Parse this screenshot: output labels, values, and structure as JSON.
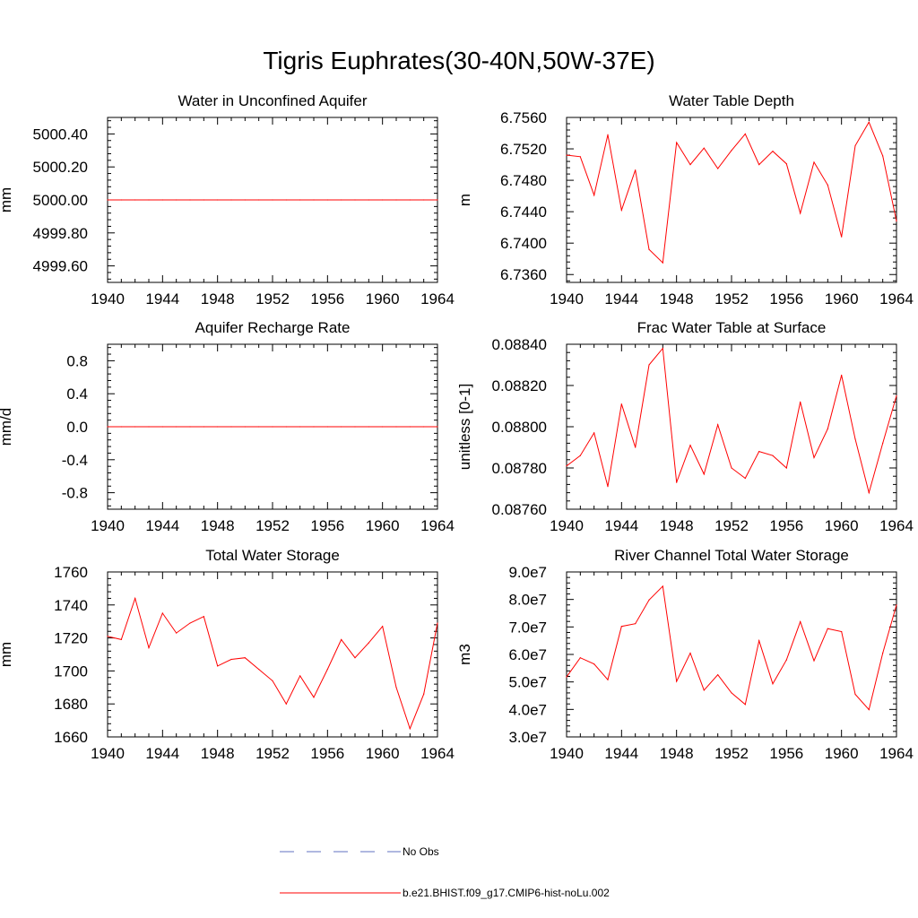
{
  "title": "Tigris Euphrates(30-40N,50W-37E)",
  "legend": [
    {
      "label": "No Obs",
      "color": "#6070c0",
      "style": "dashed"
    },
    {
      "label": "b.e21.BHIST.f09_g17.CMIP6-hist-noLu.002",
      "color": "#ff0000",
      "style": "solid"
    }
  ],
  "chart_data": [
    {
      "type": "line",
      "title": "Water in Unconfined Aquifer",
      "ylabel": "mm",
      "xlim": [
        1940,
        1964
      ],
      "ylim": [
        4999.5,
        5000.5
      ],
      "xticks": [
        "1940",
        "1944",
        "1948",
        "1952",
        "1956",
        "1960",
        "1964"
      ],
      "yticks": [
        {
          "v": 5000.4,
          "label": "5000.40"
        },
        {
          "v": 5000.2,
          "label": "5000.20"
        },
        {
          "v": 5000.0,
          "label": "5000.00"
        },
        {
          "v": 4999.8,
          "label": "4999.80"
        },
        {
          "v": 4999.6,
          "label": "4999.60"
        }
      ],
      "x": [
        1940,
        1941,
        1942,
        1943,
        1944,
        1945,
        1946,
        1947,
        1948,
        1949,
        1950,
        1951,
        1952,
        1953,
        1954,
        1955,
        1956,
        1957,
        1958,
        1959,
        1960,
        1961,
        1962,
        1963,
        1964
      ],
      "series": [
        {
          "name": "b.e21.BHIST.f09_g17.CMIP6-hist-noLu.002",
          "color": "#ff0000",
          "values": [
            5000,
            5000,
            5000,
            5000,
            5000,
            5000,
            5000,
            5000,
            5000,
            5000,
            5000,
            5000,
            5000,
            5000,
            5000,
            5000,
            5000,
            5000,
            5000,
            5000,
            5000,
            5000,
            5000,
            5000,
            5000
          ]
        }
      ]
    },
    {
      "type": "line",
      "title": "Water Table Depth",
      "ylabel": "m",
      "xlim": [
        1940,
        1964
      ],
      "ylim": [
        6.735,
        6.756
      ],
      "xticks": [
        "1940",
        "1944",
        "1948",
        "1952",
        "1956",
        "1960",
        "1964"
      ],
      "yticks": [
        {
          "v": 6.756,
          "label": "6.7560"
        },
        {
          "v": 6.752,
          "label": "6.7520"
        },
        {
          "v": 6.748,
          "label": "6.7480"
        },
        {
          "v": 6.744,
          "label": "6.7440"
        },
        {
          "v": 6.74,
          "label": "6.7400"
        },
        {
          "v": 6.736,
          "label": "6.7360"
        }
      ],
      "x": [
        1940,
        1941,
        1942,
        1943,
        1944,
        1945,
        1946,
        1947,
        1948,
        1949,
        1950,
        1951,
        1952,
        1953,
        1954,
        1955,
        1956,
        1957,
        1958,
        1959,
        1960,
        1961,
        1962,
        1963,
        1964
      ],
      "series": [
        {
          "name": "b.e21.BHIST.f09_g17.CMIP6-hist-noLu.002",
          "color": "#ff0000",
          "values": [
            6.7512,
            6.751,
            6.7461,
            6.7538,
            6.7442,
            6.7493,
            6.7392,
            6.7375,
            6.7528,
            6.75,
            6.7521,
            6.7495,
            6.7518,
            6.7539,
            6.75,
            6.7517,
            6.7501,
            6.7438,
            6.7503,
            6.7474,
            6.7408,
            6.7524,
            6.7554,
            6.7511,
            6.7428
          ]
        }
      ]
    },
    {
      "type": "line",
      "title": "Aquifer Recharge Rate",
      "ylabel": "mm/d",
      "xlim": [
        1940,
        1964
      ],
      "ylim": [
        -1.0,
        1.0
      ],
      "xticks": [
        "1940",
        "1944",
        "1948",
        "1952",
        "1956",
        "1960",
        "1964"
      ],
      "yticks": [
        {
          "v": 0.8,
          "label": "0.8"
        },
        {
          "v": 0.4,
          "label": "0.4"
        },
        {
          "v": 0.0,
          "label": "0.0"
        },
        {
          "v": -0.4,
          "label": "-0.4"
        },
        {
          "v": -0.8,
          "label": "-0.8"
        }
      ],
      "x": [
        1940,
        1941,
        1942,
        1943,
        1944,
        1945,
        1946,
        1947,
        1948,
        1949,
        1950,
        1951,
        1952,
        1953,
        1954,
        1955,
        1956,
        1957,
        1958,
        1959,
        1960,
        1961,
        1962,
        1963,
        1964
      ],
      "series": [
        {
          "name": "b.e21.BHIST.f09_g17.CMIP6-hist-noLu.002",
          "color": "#ff0000",
          "values": [
            0,
            0,
            0,
            0,
            0,
            0,
            0,
            0,
            0,
            0,
            0,
            0,
            0,
            0,
            0,
            0,
            0,
            0,
            0,
            0,
            0,
            0,
            0,
            0,
            0
          ]
        }
      ]
    },
    {
      "type": "line",
      "title": "Frac Water Table at Surface",
      "ylabel": "unitless [0-1]",
      "xlim": [
        1940,
        1964
      ],
      "ylim": [
        0.0876,
        0.0884
      ],
      "xticks": [
        "1940",
        "1944",
        "1948",
        "1952",
        "1956",
        "1960",
        "1964"
      ],
      "yticks": [
        {
          "v": 0.0884,
          "label": "0.08840"
        },
        {
          "v": 0.0882,
          "label": "0.08820"
        },
        {
          "v": 0.088,
          "label": "0.08800"
        },
        {
          "v": 0.0878,
          "label": "0.08780"
        },
        {
          "v": 0.0876,
          "label": "0.08760"
        }
      ],
      "x": [
        1940,
        1941,
        1942,
        1943,
        1944,
        1945,
        1946,
        1947,
        1948,
        1949,
        1950,
        1951,
        1952,
        1953,
        1954,
        1955,
        1956,
        1957,
        1958,
        1959,
        1960,
        1961,
        1962,
        1963,
        1964
      ],
      "series": [
        {
          "name": "b.e21.BHIST.f09_g17.CMIP6-hist-noLu.002",
          "color": "#ff0000",
          "values": [
            0.08781,
            0.08786,
            0.08797,
            0.08771,
            0.08811,
            0.0879,
            0.0883,
            0.08838,
            0.08773,
            0.08791,
            0.08777,
            0.08801,
            0.0878,
            0.08775,
            0.08788,
            0.08786,
            0.0878,
            0.08812,
            0.08785,
            0.08799,
            0.08825,
            0.08794,
            0.08768,
            0.08792,
            0.08815
          ]
        }
      ]
    },
    {
      "type": "line",
      "title": "Total Water Storage",
      "ylabel": "mm",
      "xlim": [
        1940,
        1964
      ],
      "ylim": [
        1660,
        1760
      ],
      "xticks": [
        "1940",
        "1944",
        "1948",
        "1952",
        "1956",
        "1960",
        "1964"
      ],
      "yticks": [
        {
          "v": 1760,
          "label": "1760"
        },
        {
          "v": 1740,
          "label": "1740"
        },
        {
          "v": 1720,
          "label": "1720"
        },
        {
          "v": 1700,
          "label": "1700"
        },
        {
          "v": 1680,
          "label": "1680"
        },
        {
          "v": 1660,
          "label": "1660"
        }
      ],
      "x": [
        1940,
        1941,
        1942,
        1943,
        1944,
        1945,
        1946,
        1947,
        1948,
        1949,
        1950,
        1951,
        1952,
        1953,
        1954,
        1955,
        1956,
        1957,
        1958,
        1959,
        1960,
        1961,
        1962,
        1963,
        1964
      ],
      "series": [
        {
          "name": "b.e21.BHIST.f09_g17.CMIP6-hist-noLu.002",
          "color": "#ff0000",
          "values": [
            1721,
            1719,
            1744,
            1714,
            1735,
            1723,
            1729,
            1733,
            1703,
            1707,
            1708,
            1701,
            1694,
            1680,
            1697,
            1684,
            1701,
            1719,
            1708,
            1717,
            1727,
            1690,
            1665,
            1686,
            1729
          ]
        }
      ]
    },
    {
      "type": "line",
      "title": "River Channel Total Water Storage",
      "ylabel": "m3",
      "xlim": [
        1940,
        1964
      ],
      "ylim": [
        30000000,
        90000000
      ],
      "xticks": [
        "1940",
        "1944",
        "1948",
        "1952",
        "1956",
        "1960",
        "1964"
      ],
      "yticks": [
        {
          "v": 90000000,
          "label": "9.0e7"
        },
        {
          "v": 80000000,
          "label": "8.0e7"
        },
        {
          "v": 70000000,
          "label": "7.0e7"
        },
        {
          "v": 60000000,
          "label": "6.0e7"
        },
        {
          "v": 50000000,
          "label": "5.0e7"
        },
        {
          "v": 40000000,
          "label": "4.0e7"
        },
        {
          "v": 30000000,
          "label": "3.0e7"
        }
      ],
      "x": [
        1940,
        1941,
        1942,
        1943,
        1944,
        1945,
        1946,
        1947,
        1948,
        1949,
        1950,
        1951,
        1952,
        1953,
        1954,
        1955,
        1956,
        1957,
        1958,
        1959,
        1960,
        1961,
        1962,
        1963,
        1964
      ],
      "series": [
        {
          "name": "b.e21.BHIST.f09_g17.CMIP6-hist-noLu.002",
          "color": "#ff0000",
          "values": [
            51800000,
            58800000,
            56500000,
            50800000,
            70200000,
            71200000,
            79800000,
            84800000,
            50200000,
            60500000,
            47000000,
            52600000,
            46000000,
            41800000,
            65000000,
            49300000,
            58000000,
            71900000,
            57700000,
            69400000,
            68300000,
            45500000,
            39900000,
            60500000,
            78000000
          ]
        }
      ]
    }
  ]
}
